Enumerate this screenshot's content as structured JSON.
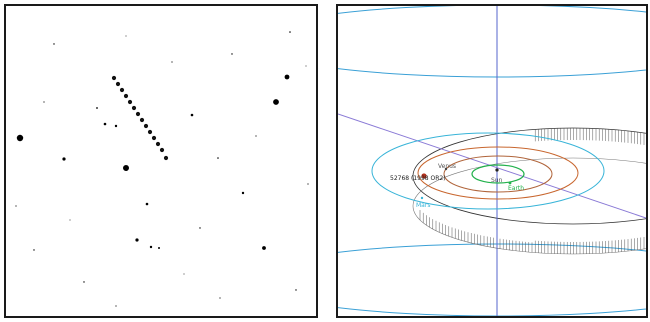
{
  "left_panel": {
    "content": "star field with asteroid trail"
  },
  "right_panel": {
    "labels": {
      "sun": "Sun",
      "venus": "Venus",
      "earth": "Earth",
      "mars": "Mars",
      "asteroid": "52768 (1998 OR2)"
    },
    "colors": {
      "outer_orbit": "#3aa0d6",
      "mars_orbit": "#38b4d8",
      "earth_orbit": "#c8662e",
      "venus_orbit": "#b0643a",
      "mercury_orbit": "#22b14c",
      "axis_vertical": "#5566cc",
      "axis_diagonal": "#8a7ad6",
      "asteroid_orbit": "#333333"
    }
  }
}
